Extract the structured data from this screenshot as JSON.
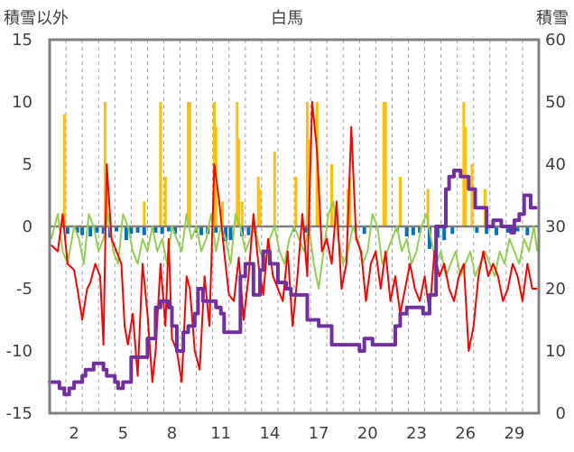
{
  "chart_data": {
    "type": "line",
    "title": "白馬",
    "ylabel_left": "積雪以外",
    "ylabel_right": "積雪",
    "ylim_left": [
      -15,
      15
    ],
    "yticks_left": [
      -15,
      -10,
      -5,
      0,
      5,
      10,
      15
    ],
    "ylim_right": [
      0,
      60
    ],
    "yticks_right": [
      0,
      10,
      20,
      30,
      40,
      50,
      60
    ],
    "xlim": [
      0.5,
      30.5
    ],
    "xticks": [
      2,
      5,
      8,
      11,
      14,
      17,
      20,
      23,
      26,
      29
    ],
    "grid": "vertical-dashed-daily",
    "legend": "none",
    "colors": {
      "temperature_max": "#ff0000",
      "temperature_min": "#92d050",
      "precipitation": "#ffc000",
      "snow_change": "#0070c0",
      "snow_depth": "#7030a0",
      "frame": "#808080",
      "zero_line": "#808080",
      "grid": "#a0a0a0"
    },
    "series": [
      {
        "key": "temperature_max",
        "axis": "left",
        "kind": "line",
        "x": [
          0.6,
          1.0,
          1.3,
          1.6,
          2.0,
          2.2,
          2.5,
          2.8,
          3.0,
          3.3,
          3.6,
          3.8,
          4.0,
          4.3,
          4.6,
          4.9,
          5.1,
          5.3,
          5.6,
          5.9,
          6.2,
          6.5,
          6.8,
          7.0,
          7.3,
          7.6,
          7.8,
          8.0,
          8.3,
          8.6,
          8.9,
          9.1,
          9.4,
          9.7,
          10.0,
          10.3,
          10.6,
          10.9,
          11.2,
          11.5,
          11.8,
          12.1,
          12.4,
          12.7,
          13.0,
          13.3,
          13.6,
          13.9,
          14.2,
          14.5,
          14.8,
          15.1,
          15.4,
          15.7,
          16.0,
          16.3,
          16.6,
          16.9,
          17.2,
          17.5,
          17.8,
          18.1,
          18.4,
          18.7,
          19.0,
          19.3,
          19.6,
          19.9,
          20.2,
          20.5,
          20.8,
          21.1,
          21.4,
          21.7,
          22.0,
          22.3,
          22.6,
          22.9,
          23.2,
          23.5,
          23.8,
          24.1,
          24.4,
          24.7,
          25.0,
          25.3,
          25.6,
          25.9,
          26.2,
          26.5,
          26.8,
          27.1,
          27.4,
          27.7,
          28.0,
          28.3,
          28.6,
          28.9,
          29.2,
          29.5,
          29.8,
          30.1,
          30.4
        ],
        "y": [
          -1.5,
          -2,
          1,
          -3,
          -3.5,
          -5,
          -7.5,
          -5,
          -4.5,
          -3,
          -4,
          -9.5,
          5,
          -1,
          -2,
          -3,
          -8,
          -9.5,
          -7,
          -12,
          -3,
          -7,
          -12.5,
          -10,
          -3,
          -8,
          -1,
          -9,
          -10,
          -12.5,
          -4,
          -5,
          -10,
          -11.5,
          -4,
          -8,
          5,
          2,
          -2,
          -5.5,
          -6,
          -2.5,
          -7.5,
          -4,
          1,
          -3,
          -5.5,
          -1,
          -4,
          -5,
          -6,
          -2,
          -8,
          -4,
          1,
          -4,
          10,
          6,
          -2,
          -1,
          -3,
          2,
          -5,
          -3,
          8,
          -1,
          -2,
          -6,
          -3,
          -2,
          -5,
          -2,
          -6,
          -4,
          -7,
          -5,
          -3,
          -5,
          -6,
          -4,
          -7,
          -2,
          -4,
          -3,
          -5,
          -6,
          -4,
          -3,
          -10,
          -8,
          -4,
          -2,
          -4,
          -3,
          -4,
          -6,
          -5,
          -3,
          -4,
          -6,
          -3,
          -5,
          -5
        ]
      },
      {
        "key": "temperature_min",
        "axis": "left",
        "kind": "line",
        "x": [
          0.6,
          1.0,
          1.3,
          1.6,
          2.0,
          2.3,
          2.6,
          2.9,
          3.2,
          3.5,
          3.8,
          4.1,
          4.4,
          4.7,
          5.0,
          5.3,
          5.6,
          5.9,
          6.2,
          6.5,
          6.8,
          7.1,
          7.4,
          7.7,
          8.0,
          8.3,
          8.6,
          8.9,
          9.2,
          9.5,
          9.8,
          10.1,
          10.4,
          10.7,
          11.0,
          11.3,
          11.6,
          11.9,
          12.2,
          12.5,
          12.8,
          13.1,
          13.4,
          13.7,
          14.0,
          14.3,
          14.6,
          14.9,
          15.2,
          15.5,
          15.8,
          16.1,
          16.4,
          16.7,
          17.0,
          17.3,
          17.6,
          17.9,
          18.2,
          18.5,
          18.8,
          19.1,
          19.4,
          19.7,
          20.0,
          20.3,
          20.6,
          20.9,
          21.2,
          21.5,
          21.8,
          22.1,
          22.4,
          22.7,
          23.0,
          23.3,
          23.6,
          23.9,
          24.2,
          24.5,
          24.8,
          25.1,
          25.4,
          25.7,
          26.0,
          26.3,
          26.6,
          26.9,
          27.2,
          27.5,
          27.8,
          28.1,
          28.4,
          28.7,
          29.0,
          29.3,
          29.6,
          29.9,
          30.2,
          30.4
        ],
        "y": [
          -1,
          1,
          -2,
          -3,
          0,
          -1,
          -3,
          1,
          0,
          -2,
          -1,
          1,
          -2,
          -3,
          1,
          0,
          -2,
          -3,
          -1,
          -2,
          0,
          -2,
          -1,
          -3,
          0,
          -1,
          -2,
          1,
          -1,
          0,
          -2,
          -1,
          1,
          -2,
          0,
          -1,
          -3,
          1,
          0,
          -2,
          -1,
          0,
          -2,
          -3,
          -1,
          0,
          -2,
          -3,
          -1,
          0,
          -1,
          -2,
          0,
          -3,
          -5,
          -2,
          1,
          2,
          -1,
          -3,
          -2,
          0,
          -1,
          -3,
          -2,
          1,
          0,
          -3,
          -2,
          -1,
          0,
          -2,
          -1,
          -3,
          -2,
          0,
          1,
          -1,
          -3,
          -2,
          -4,
          -3,
          -2,
          -4,
          -3,
          -2,
          -4,
          -3,
          -2,
          -3,
          -4,
          -2,
          -3,
          -1,
          -2,
          -3,
          -1,
          -2,
          0,
          -2
        ]
      },
      {
        "key": "precipitation",
        "axis": "left",
        "kind": "bar",
        "x": [
          1.4,
          3.9,
          4.0,
          6.3,
          7.3,
          7.6,
          9.0,
          9.1,
          10.6,
          10.7,
          11.1,
          12.0,
          12.1,
          12.3,
          13.3,
          13.4,
          14.3,
          15.6,
          16.3,
          16.4,
          16.9,
          17.0,
          17.8,
          18.8,
          18.9,
          21.0,
          21.1,
          22.0,
          23.7,
          25.9,
          26.0,
          26.4,
          27.2
        ],
        "y": [
          9,
          10,
          3,
          2,
          10,
          4,
          10,
          10,
          10,
          8,
          2,
          10,
          7,
          2,
          4,
          3,
          6,
          4,
          10,
          7,
          10,
          4,
          5,
          3,
          4,
          10,
          10,
          4,
          3,
          10,
          8,
          5,
          3
        ]
      },
      {
        "key": "snow_change",
        "axis": "left",
        "kind": "bar",
        "x": [
          1.6,
          2.2,
          2.5,
          3.0,
          3.4,
          3.8,
          4.2,
          4.6,
          5.2,
          5.5,
          5.9,
          6.3,
          7.0,
          7.4,
          7.8,
          8.2,
          9.5,
          9.8,
          10.2,
          10.7,
          11.3,
          11.6,
          12.3,
          12.7,
          13.1,
          15.5,
          16.2,
          19.8,
          21.8,
          22.4,
          22.8,
          23.2,
          23.8,
          24.3,
          24.7,
          25.2,
          26.7,
          27.3,
          27.9,
          28.6,
          29.2,
          29.8
        ],
        "y": [
          -0.6,
          -0.5,
          -0.7,
          -0.8,
          -0.5,
          -0.6,
          -0.9,
          -0.4,
          -1.1,
          -0.6,
          -0.5,
          -0.7,
          -0.5,
          -0.6,
          -0.4,
          -0.6,
          -0.5,
          -0.7,
          -0.6,
          -0.5,
          -1.2,
          -1.1,
          -0.8,
          -0.7,
          -0.5,
          -0.4,
          -0.5,
          -0.6,
          -0.4,
          -0.8,
          -0.7,
          -0.5,
          -1.8,
          -0.9,
          -1.1,
          -0.6,
          -0.5,
          -0.6,
          -0.7,
          -0.5,
          -0.4,
          -0.7
        ]
      },
      {
        "key": "snow_depth",
        "axis": "right",
        "kind": "step",
        "x": [
          0.5,
          1.0,
          1.1,
          1.4,
          1.5,
          1.7,
          2.0,
          2.5,
          2.7,
          3.2,
          3.8,
          4.0,
          4.5,
          4.7,
          5.0,
          5.5,
          6.5,
          7.0,
          7.3,
          7.8,
          8.0,
          8.3,
          8.7,
          9.0,
          9.4,
          9.6,
          9.9,
          10.4,
          10.7,
          11.0,
          11.2,
          12.2,
          12.5,
          13.0,
          13.4,
          13.6,
          14.0,
          14.5,
          15.0,
          15.3,
          16.0,
          16.3,
          17.0,
          17.8,
          19.0,
          19.5,
          19.8,
          20.3,
          21.0,
          21.7,
          22.0,
          22.4,
          23.0,
          23.4,
          23.8,
          24.2,
          24.8,
          25.0,
          25.3,
          25.7,
          26.2,
          26.6,
          27.3,
          27.7,
          28.2,
          28.8,
          29.0,
          29.3,
          29.6,
          30.0,
          30.3
        ],
        "y": [
          5,
          5,
          4,
          3,
          3,
          4,
          5,
          6,
          7,
          8,
          7,
          6,
          5,
          4,
          5,
          9,
          12,
          17,
          18,
          17,
          14,
          10,
          13,
          14,
          16,
          20,
          18,
          18,
          17,
          16,
          13,
          22,
          24,
          19,
          23,
          26,
          24,
          21,
          20,
          19,
          19,
          15,
          14,
          11,
          11,
          10,
          12,
          11,
          11,
          14,
          16,
          17,
          17,
          16,
          19,
          30,
          36,
          38,
          39,
          38,
          36,
          33,
          30,
          31,
          30,
          29,
          31,
          32,
          35,
          33,
          33
        ]
      }
    ]
  }
}
